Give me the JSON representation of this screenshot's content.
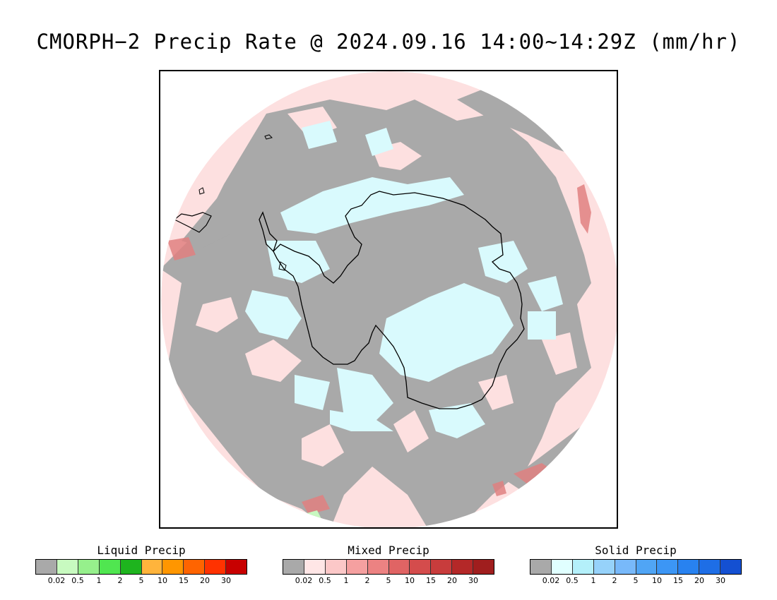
{
  "title": "CMORPH−2 Precip Rate @ 2024.09.16 14:00~14:29Z (mm/hr)",
  "map": {
    "projection": "south-polar-stereographic",
    "coastline_color": "#000000",
    "field_colors": {
      "no_precip": "#a9a9a9",
      "light_mixed": "#fde0e0",
      "light_solid": "#d9fafd",
      "moderate_mixed": "#e08080",
      "light_liquid": "#c8f8c0"
    }
  },
  "legends": [
    {
      "title": "Liquid Precip",
      "colors": [
        "#a9a9a9",
        "#c8fac0",
        "#96f08c",
        "#50e650",
        "#1eb41e",
        "#ffb43c",
        "#ff9600",
        "#ff6400",
        "#ff3200",
        "#c80000"
      ],
      "ticks": [
        "0.02",
        "0.5",
        "1",
        "2",
        "5",
        "10",
        "15",
        "20",
        "30"
      ]
    },
    {
      "title": "Mixed Precip",
      "colors": [
        "#a9a9a9",
        "#ffe6e6",
        "#fcc8c8",
        "#f5a0a0",
        "#ec8282",
        "#e06464",
        "#d44c4c",
        "#c83c3c",
        "#b42828",
        "#a01e1e"
      ],
      "ticks": [
        "0.02",
        "0.5",
        "1",
        "2",
        "5",
        "10",
        "15",
        "20",
        "30"
      ]
    },
    {
      "title": "Solid Precip",
      "colors": [
        "#a9a9a9",
        "#e0ffff",
        "#b4f0fa",
        "#96d2fa",
        "#78b9fa",
        "#50a5f5",
        "#3c96f5",
        "#2882f0",
        "#1e6ee6",
        "#1450d2"
      ],
      "ticks": [
        "0.02",
        "0.5",
        "1",
        "2",
        "5",
        "10",
        "15",
        "20",
        "30"
      ]
    }
  ]
}
